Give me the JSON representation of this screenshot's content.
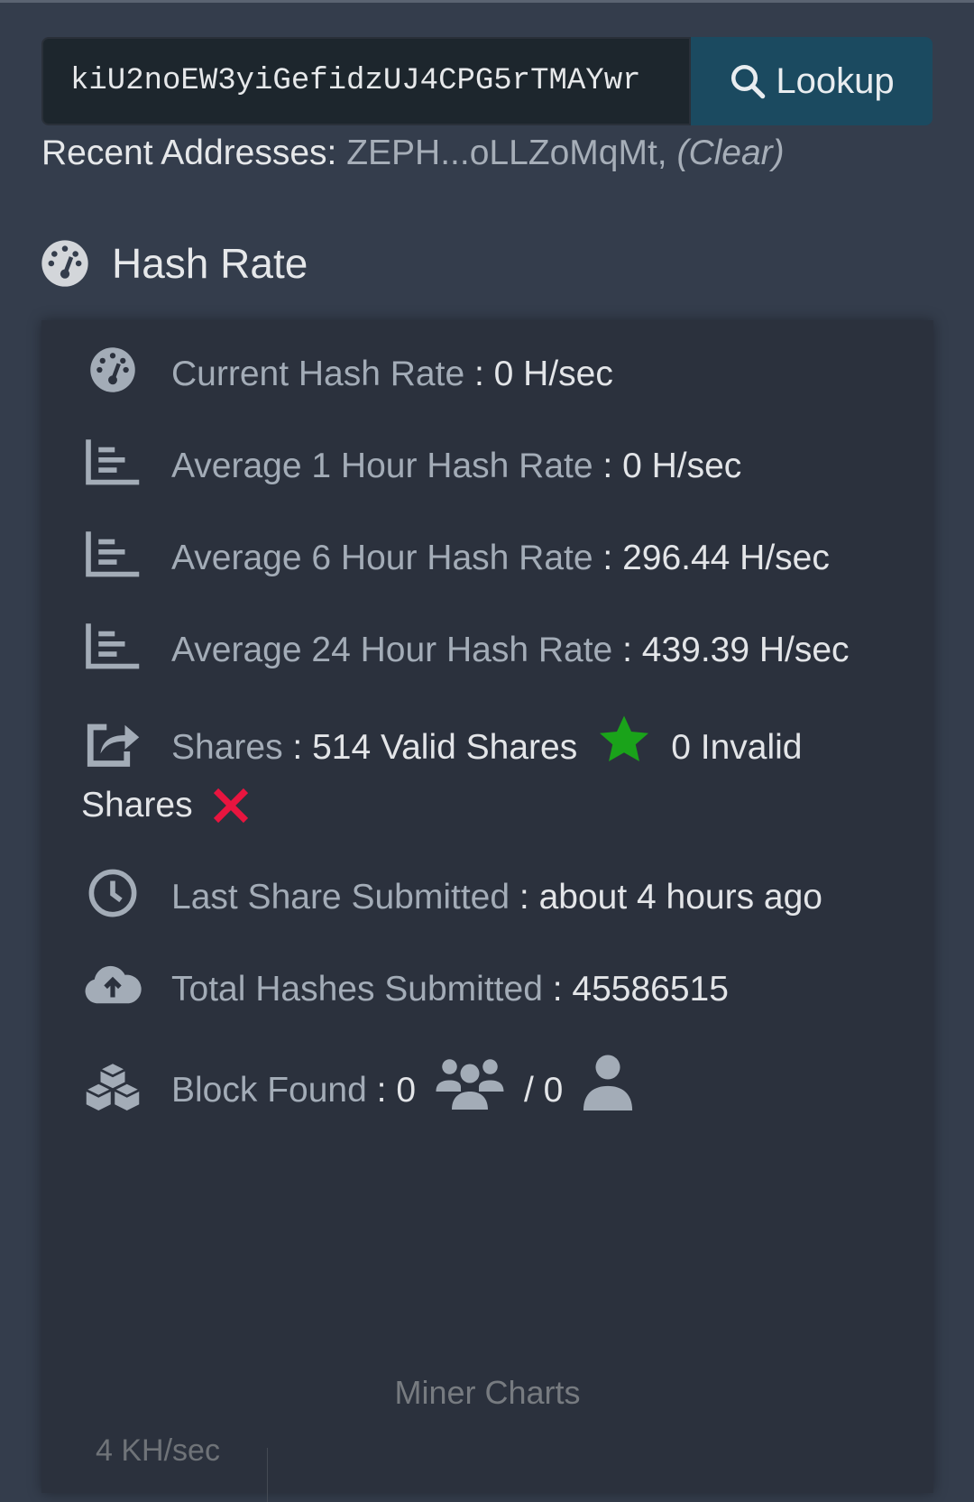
{
  "search": {
    "value": "kiU2noEW3yiGefidzUJ4CPG5rTMAYwr",
    "button_label": "Lookup",
    "button_icon": "search-icon"
  },
  "recent": {
    "label": "Recent Addresses:",
    "address": "ZEPH...oLLZoMqMt,",
    "clear": "(Clear)"
  },
  "section": {
    "title": "Hash Rate",
    "icon": "tachometer-icon"
  },
  "stats": {
    "current": {
      "label": "Current Hash Rate",
      "value": "0 H/sec"
    },
    "avg1": {
      "label": "Average 1 Hour Hash Rate",
      "value": "0 H/sec"
    },
    "avg6": {
      "label": "Average 6 Hour Hash Rate",
      "value": "296.44 H/sec"
    },
    "avg24": {
      "label": "Average 24 Hour Hash Rate",
      "value": "439.39 H/sec"
    },
    "shares": {
      "label": "Shares",
      "valid": "514 Valid Shares",
      "invalid": "0 Invalid Shares"
    },
    "last_share": {
      "label": "Last Share Submitted",
      "value": "about 4 hours ago"
    },
    "total": {
      "label": "Total Hashes Submitted",
      "value": "45586515"
    },
    "blocks": {
      "label": "Block Found",
      "pool": "0",
      "solo": "/ 0"
    }
  },
  "colors": {
    "valid_star": "#1aa31a",
    "invalid_x": "#e8153f",
    "accent": "#1b4a60"
  },
  "charts": {
    "title": "Miner Charts",
    "ytick_top": "4 KH/sec"
  }
}
